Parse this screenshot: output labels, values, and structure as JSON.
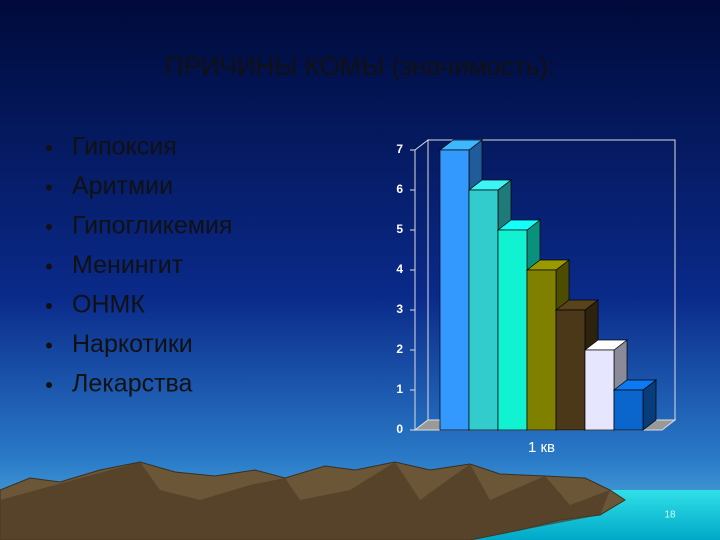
{
  "chart_data": {
    "type": "bar",
    "title": "ПРИЧИНЫ КОМЫ (значимость):",
    "categories": [
      "1 кв"
    ],
    "series": [
      {
        "name": "Гипоксия",
        "color": "#3399ff",
        "values": [
          7
        ]
      },
      {
        "name": "Аритмии",
        "color": "#33cccc",
        "values": [
          6
        ]
      },
      {
        "name": "Гипогликемия",
        "color": "#11f2d2",
        "values": [
          5
        ]
      },
      {
        "name": "Менингит",
        "color": "#808000",
        "values": [
          4
        ]
      },
      {
        "name": "ОНМК",
        "color": "#4a3818",
        "values": [
          3
        ]
      },
      {
        "name": "Наркотики",
        "color": "#e6e6ff",
        "values": [
          2
        ]
      },
      {
        "name": "Лекарства",
        "color": "#0a66cc",
        "values": [
          1
        ]
      }
    ],
    "ylim": [
      0,
      7
    ],
    "yticks": [
      0,
      1,
      2,
      3,
      4,
      5,
      6,
      7
    ],
    "grid": false
  },
  "page_number": "18"
}
